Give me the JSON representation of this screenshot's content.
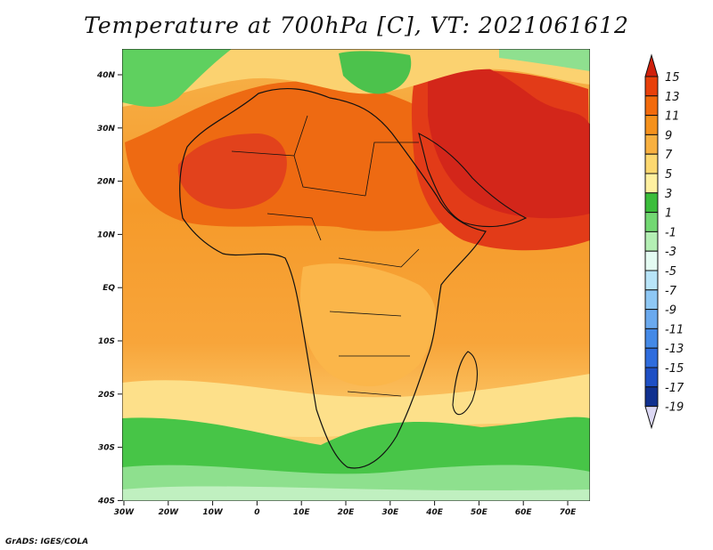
{
  "title": "Temperature at 700hPa [C], VT: 2021061612",
  "credit": "GrADS: IGES/COLA",
  "lat_labels": [
    "40N",
    "30N",
    "20N",
    "10N",
    "EQ",
    "10S",
    "20S",
    "30S",
    "40S"
  ],
  "lon_labels": [
    "30W",
    "20W",
    "10W",
    "0",
    "10E",
    "20E",
    "30E",
    "40E",
    "50E",
    "60E",
    "70E"
  ],
  "colorbar": {
    "labels": [
      "15",
      "13",
      "11",
      "9",
      "7",
      "5",
      "3",
      "1",
      "-1",
      "-3",
      "-5",
      "-7",
      "-9",
      "-11",
      "-13",
      "-15",
      "-17",
      "-19"
    ],
    "colors": [
      "#d0200c",
      "#e8400a",
      "#f26a0c",
      "#f5911c",
      "#f8b040",
      "#fdd870",
      "#fff0a0",
      "#3bbd3b",
      "#72d872",
      "#b4efb4",
      "#e4fbf2",
      "#b8e4f8",
      "#8ec7f4",
      "#6aa9ee",
      "#4489e6",
      "#2e6cdd",
      "#1e4fc4",
      "#10308f",
      "#061a6a"
    ]
  }
}
